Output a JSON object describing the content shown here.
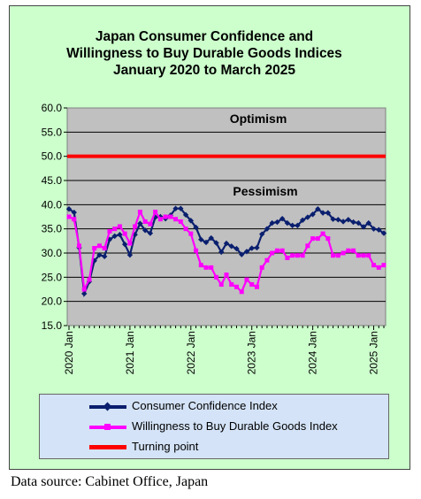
{
  "chart_data": {
    "type": "line",
    "title_lines": [
      "Japan Consumer Confidence and",
      "Willingness to Buy Durable Goods Indices",
      "January 2020 to March 2025"
    ],
    "ylim": [
      15.0,
      60.0
    ],
    "y_ticks": [
      "60.0",
      "55.0",
      "50.0",
      "45.0",
      "40.0",
      "35.0",
      "30.0",
      "25.0",
      "20.0",
      "15.0"
    ],
    "x_tick_labels": [
      "2020 Jan",
      "2021 Jan",
      "2022 Jan",
      "2023 Jan",
      "2024 Jan",
      "2025 Jan"
    ],
    "annotations": {
      "above": "Optimism",
      "below": "Pessimism"
    },
    "x_start": "2020-01",
    "x_end": "2025-03",
    "series": [
      {
        "name": "Consumer Confidence Index",
        "color": "#0a1f6e",
        "marker": "diamond",
        "values": [
          39.1,
          38.4,
          31.1,
          21.6,
          24.1,
          28.4,
          29.6,
          29.3,
          32.8,
          33.5,
          33.8,
          31.8,
          29.6,
          33.8,
          36.1,
          34.7,
          34.1,
          37.4,
          37.5,
          37.1,
          37.8,
          39.2,
          39.2,
          37.9,
          36.7,
          35.3,
          32.8,
          32.2,
          33.1,
          32.1,
          30.2,
          32.0,
          31.4,
          30.9,
          29.7,
          30.3,
          31.0,
          31.1,
          33.9,
          35.0,
          36.2,
          36.4,
          37.1,
          36.2,
          35.7,
          35.7,
          36.8,
          37.4,
          38.0,
          39.1,
          38.3,
          38.3,
          37.0,
          36.9,
          36.5,
          36.9,
          36.4,
          36.2,
          35.4,
          36.2,
          35.0,
          34.8,
          34.1
        ]
      },
      {
        "name": "Willingness to Buy Durable Goods Index",
        "color": "#ff00ff",
        "marker": "square",
        "values": [
          37.5,
          37.0,
          31.5,
          22.5,
          24.5,
          31.0,
          31.5,
          31.0,
          34.5,
          35.0,
          35.5,
          34.0,
          32.0,
          35.5,
          38.5,
          36.5,
          36.0,
          38.5,
          37.0,
          37.5,
          37.5,
          37.0,
          36.5,
          35.0,
          34.0,
          30.5,
          27.5,
          27.0,
          27.0,
          25.0,
          23.5,
          25.5,
          23.5,
          23.0,
          22.0,
          24.5,
          23.5,
          23.0,
          27.0,
          28.5,
          30.0,
          30.5,
          30.5,
          29.0,
          29.5,
          29.5,
          29.5,
          31.5,
          33.0,
          33.0,
          34.0,
          33.0,
          29.5,
          29.5,
          30.0,
          30.5,
          30.5,
          29.5,
          29.5,
          29.5,
          27.5,
          27.0,
          27.5
        ]
      },
      {
        "name": "Turning point",
        "color": "#ff0000",
        "marker": "none",
        "values": [
          50.0
        ]
      }
    ]
  },
  "source_text": "Data source: Cabinet Office, Japan"
}
